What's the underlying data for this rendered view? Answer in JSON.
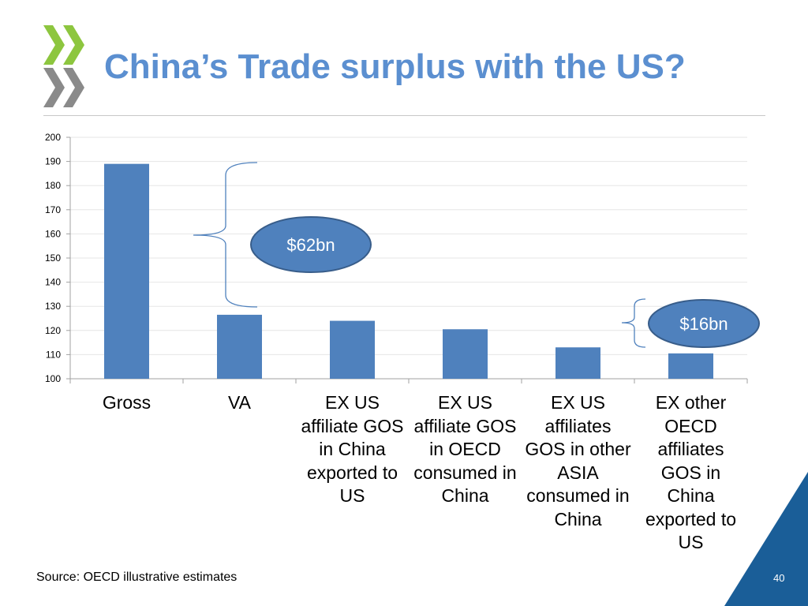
{
  "slide": {
    "title": "China’s Trade surplus with the US?",
    "source": "Source: OECD illustrative estimates",
    "page_number": "40"
  },
  "annotations": [
    {
      "label": "$62bn"
    },
    {
      "label": "$16bn"
    }
  ],
  "colors": {
    "bar": "#4f81bd",
    "title": "#5b8fd0",
    "bubble_fill": "#4f81bd",
    "bubble_stroke": "#385d8a",
    "corner": "#1a5e98",
    "logo": "#8dc63f"
  },
  "chart_data": {
    "type": "bar",
    "title": "",
    "xlabel": "",
    "ylabel": "",
    "categories": [
      "Gross",
      "VA",
      "EX US affiliate GOS in China exported to US",
      "EX US affiliate GOS in OECD consumed in  China",
      "EX US affiliates GOS in other ASIA consumed in China",
      "EX other OECD affiliates GOS in China exported to US"
    ],
    "values": [
      189,
      126.5,
      124,
      120.5,
      113,
      110.5
    ],
    "ylim": [
      100,
      200
    ],
    "yticks": [
      100,
      110,
      120,
      130,
      140,
      150,
      160,
      170,
      180,
      190,
      200
    ],
    "grid": true,
    "legend": "none"
  }
}
